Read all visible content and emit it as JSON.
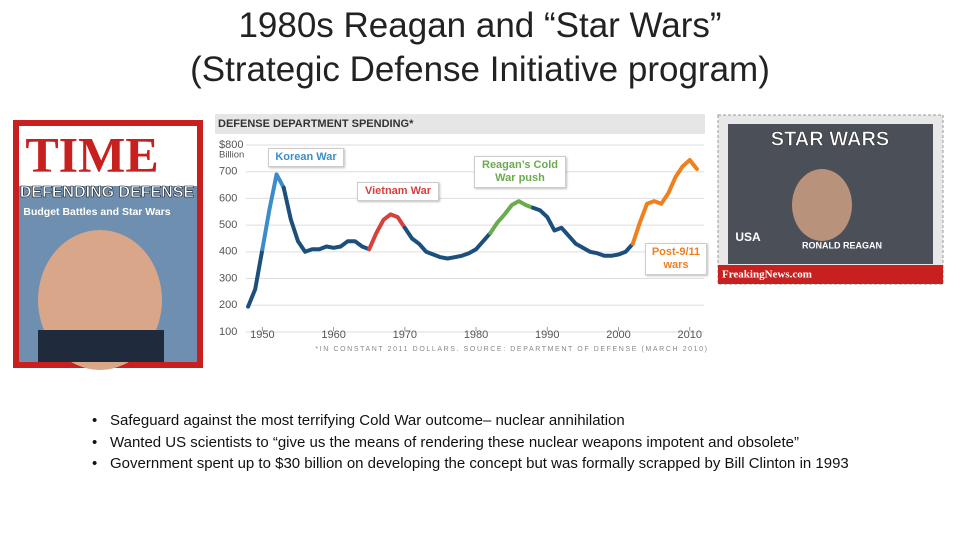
{
  "slide": {
    "title": [
      "1980s Reagan and “Star Wars”",
      "(Strategic Defense Initiative program)"
    ],
    "bullets": [
      "Safeguard against the most terrifying Cold War outcome– nuclear annihilation",
      "Wanted US scientists to “give us the means of rendering these nuclear weapons impotent and obsolete”",
      "Government spent up to $30 billion on developing the concept but was formally scrapped by Bill Clinton in 1993"
    ],
    "time_cover": {
      "masthead": "TIME",
      "headline": "DEFENDING DEFENSE",
      "subhead": "Budget Battles and Star Wars"
    },
    "stamp": {
      "title": "STAR WARS",
      "country": "USA",
      "name": "RONALD REAGAN",
      "credit": "FreakingNews.com"
    }
  },
  "chart_data": {
    "type": "line",
    "title": "DEFENSE DEPARTMENT SPENDING*",
    "y_label": "Billion",
    "footnote": "*IN CONSTANT 2011 DOLLARS. SOURCE: DEPARTMENT OF DEFENSE (MARCH 2010)",
    "xlim": [
      1947,
      2012
    ],
    "xticks": [
      1950,
      1960,
      1970,
      1980,
      1990,
      2000,
      2010
    ],
    "ylim": [
      80,
      830
    ],
    "yticks": [
      100,
      200,
      300,
      400,
      500,
      600,
      700,
      {
        "value": 800,
        "label": "$800"
      }
    ],
    "grid": true,
    "series": [
      {
        "color": "#1d4f7c",
        "x": [
          1948,
          1949,
          1950
        ],
        "values": [
          195,
          260,
          410
        ]
      },
      {
        "name": "Korean War",
        "color": "#3b8dc9",
        "x": [
          1950,
          1951,
          1952,
          1953
        ],
        "values": [
          410,
          560,
          690,
          640
        ]
      },
      {
        "color": "#1d4f7c",
        "x": [
          1953,
          1954,
          1955,
          1956,
          1957,
          1958,
          1959,
          1960,
          1961,
          1962,
          1963,
          1964,
          1965
        ],
        "values": [
          640,
          520,
          440,
          400,
          410,
          410,
          420,
          415,
          420,
          440,
          440,
          420,
          410
        ]
      },
      {
        "name": "Vietnam War",
        "color": "#d6403d",
        "x": [
          1965,
          1966,
          1967,
          1968,
          1969,
          1970
        ],
        "values": [
          410,
          470,
          520,
          540,
          530,
          490
        ]
      },
      {
        "color": "#1d4f7c",
        "x": [
          1970,
          1971,
          1972,
          1973,
          1974,
          1975,
          1976,
          1977,
          1978,
          1979,
          1980,
          1981,
          1982
        ],
        "values": [
          490,
          450,
          430,
          400,
          390,
          380,
          375,
          380,
          385,
          395,
          410,
          440,
          470
        ]
      },
      {
        "name": "Reagan’s Cold War push",
        "color": "#6aab4f",
        "x": [
          1982,
          1983,
          1984,
          1985,
          1986,
          1987,
          1988
        ],
        "values": [
          470,
          510,
          540,
          575,
          590,
          575,
          565
        ]
      },
      {
        "color": "#1d4f7c",
        "x": [
          1988,
          1989,
          1990,
          1991,
          1992,
          1993,
          1994,
          1995,
          1996,
          1997,
          1998,
          1999,
          2000,
          2001,
          2002
        ],
        "values": [
          565,
          555,
          530,
          480,
          490,
          460,
          430,
          415,
          400,
          395,
          385,
          385,
          390,
          400,
          430
        ]
      },
      {
        "name": "Post-9/11 wars",
        "color": "#f07f1e",
        "x": [
          2002,
          2003,
          2004,
          2005,
          2006,
          2007,
          2008,
          2009,
          2010,
          2011
        ],
        "values": [
          430,
          510,
          580,
          590,
          580,
          620,
          680,
          720,
          744,
          710
        ]
      }
    ]
  }
}
